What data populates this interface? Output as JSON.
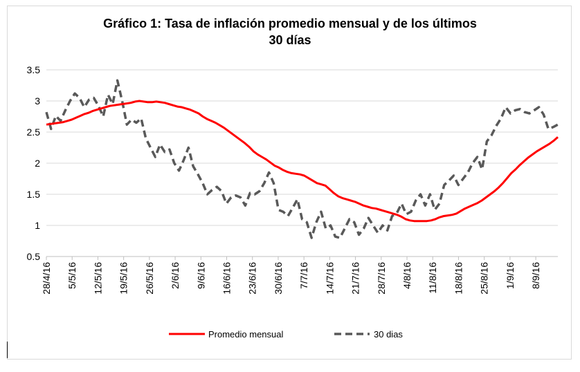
{
  "chart_data": {
    "type": "line",
    "title_line1": "Gráfico 1: Tasa de inflación promedio mensual y de los últimos",
    "title_line2": "30 días",
    "xlabel": "",
    "ylabel": "",
    "ylim": [
      0.5,
      3.5
    ],
    "yticks": [
      "0.5",
      "1",
      "1.5",
      "2",
      "2.5",
      "3",
      "3.5"
    ],
    "grid": true,
    "legend_position": "bottom",
    "xticks": [
      "28/4/16",
      "5/5/16",
      "12/5/16",
      "19/5/16",
      "26/5/16",
      "2/6/16",
      "9/6/16",
      "16/6/16",
      "23/6/16",
      "30/6/16",
      "7/7/16",
      "14/7/16",
      "21/7/16",
      "28/7/16",
      "4/8/16",
      "11/8/16",
      "18/8/16",
      "25/8/16",
      "1/9/16",
      "8/9/16"
    ],
    "x_start": "28/4/16",
    "x_end": "14/9/16",
    "series": [
      {
        "name": "Promedio mensual",
        "color": "#ff0000",
        "style": "solid",
        "values": [
          2.62,
          2.63,
          2.64,
          2.65,
          2.66,
          2.68,
          2.7,
          2.73,
          2.76,
          2.79,
          2.81,
          2.84,
          2.86,
          2.88,
          2.9,
          2.92,
          2.93,
          2.94,
          2.95,
          2.96,
          2.97,
          2.99,
          3.0,
          2.99,
          2.98,
          2.98,
          2.99,
          2.98,
          2.97,
          2.95,
          2.93,
          2.91,
          2.9,
          2.88,
          2.86,
          2.83,
          2.8,
          2.75,
          2.71,
          2.68,
          2.65,
          2.61,
          2.57,
          2.52,
          2.47,
          2.42,
          2.37,
          2.32,
          2.26,
          2.19,
          2.14,
          2.1,
          2.06,
          2.01,
          1.96,
          1.93,
          1.89,
          1.86,
          1.84,
          1.83,
          1.82,
          1.8,
          1.76,
          1.72,
          1.68,
          1.66,
          1.64,
          1.58,
          1.52,
          1.47,
          1.44,
          1.42,
          1.4,
          1.38,
          1.35,
          1.32,
          1.3,
          1.28,
          1.27,
          1.25,
          1.23,
          1.21,
          1.19,
          1.17,
          1.14,
          1.1,
          1.08,
          1.07,
          1.07,
          1.07,
          1.07,
          1.08,
          1.1,
          1.13,
          1.15,
          1.16,
          1.17,
          1.19,
          1.23,
          1.27,
          1.3,
          1.33,
          1.36,
          1.4,
          1.45,
          1.5,
          1.55,
          1.61,
          1.68,
          1.76,
          1.84,
          1.9,
          1.97,
          2.03,
          2.09,
          2.14,
          2.19,
          2.23,
          2.27,
          2.31,
          2.36,
          2.42
        ]
      },
      {
        "name": "30 dias",
        "color": "#595959",
        "style": "dashed",
        "values": [
          2.82,
          2.55,
          2.76,
          2.68,
          2.85,
          3.0,
          3.12,
          3.05,
          2.9,
          3.02,
          3.05,
          2.92,
          2.75,
          3.1,
          2.95,
          3.33,
          3.0,
          2.62,
          2.7,
          2.65,
          2.72,
          2.4,
          2.25,
          2.1,
          2.3,
          2.18,
          2.22,
          2.0,
          1.88,
          2.05,
          2.25,
          1.95,
          1.82,
          1.68,
          1.5,
          1.57,
          1.62,
          1.55,
          1.35,
          1.45,
          1.48,
          1.45,
          1.32,
          1.52,
          1.5,
          1.55,
          1.68,
          1.85,
          1.68,
          1.25,
          1.22,
          1.15,
          1.28,
          1.42,
          1.1,
          1.05,
          0.8,
          1.05,
          1.22,
          0.95,
          1.0,
          0.82,
          0.8,
          0.95,
          1.1,
          1.05,
          0.85,
          0.95,
          1.12,
          1.0,
          0.88,
          1.0,
          0.92,
          1.15,
          1.2,
          1.35,
          1.18,
          1.22,
          1.4,
          1.5,
          1.32,
          1.5,
          1.25,
          1.35,
          1.65,
          1.72,
          1.8,
          1.65,
          1.75,
          1.85,
          2.0,
          2.1,
          1.9,
          2.35,
          2.45,
          2.6,
          2.72,
          2.9,
          2.8,
          2.85,
          2.87,
          2.82,
          2.8,
          2.85,
          2.9,
          2.78,
          2.55,
          2.58,
          2.62
        ]
      }
    ]
  }
}
